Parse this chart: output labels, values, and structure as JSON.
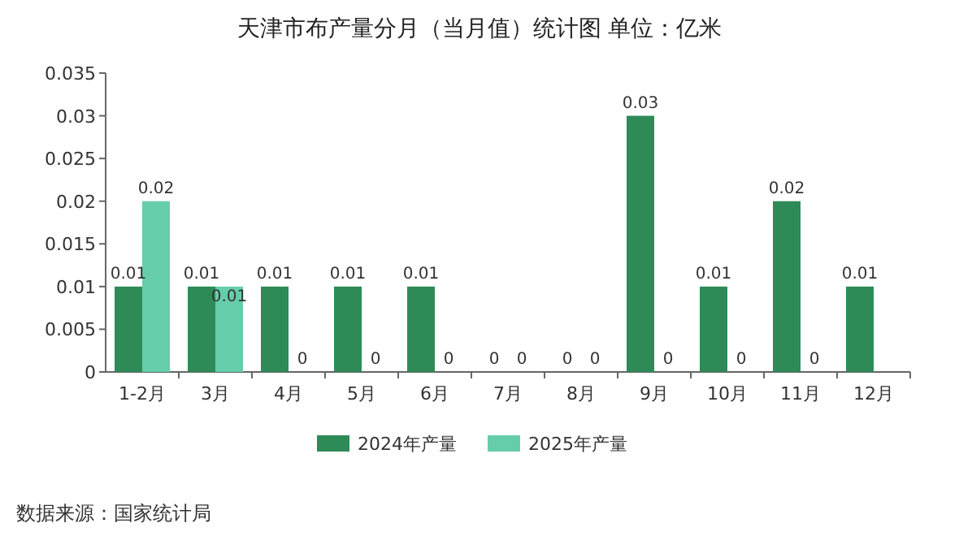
{
  "chart_data": {
    "type": "bar",
    "title": "天津市布产量分月（当月值）统计图  单位：亿米",
    "categories": [
      "1-2月",
      "3月",
      "4月",
      "5月",
      "6月",
      "7月",
      "8月",
      "9月",
      "10月",
      "11月",
      "12月"
    ],
    "series": [
      {
        "name": "2024年产量",
        "color": "#2e8b57",
        "values": [
          0.01,
          0.01,
          0.01,
          0.01,
          0.01,
          0,
          0,
          0.03,
          0.01,
          0.02,
          0.01
        ]
      },
      {
        "name": "2025年产量",
        "color": "#66cdaa",
        "values": [
          0.02,
          0.01,
          0,
          0,
          0,
          0,
          0,
          0,
          0,
          0,
          null
        ]
      }
    ],
    "ylim": [
      0,
      0.035
    ],
    "yticks": [
      0,
      0.005,
      0.01,
      0.015,
      0.02,
      0.025,
      0.03,
      0.035
    ],
    "data_labels": true,
    "legend": "bottom",
    "grid": false,
    "annotations": [
      "数据来源：国家统计局"
    ]
  }
}
